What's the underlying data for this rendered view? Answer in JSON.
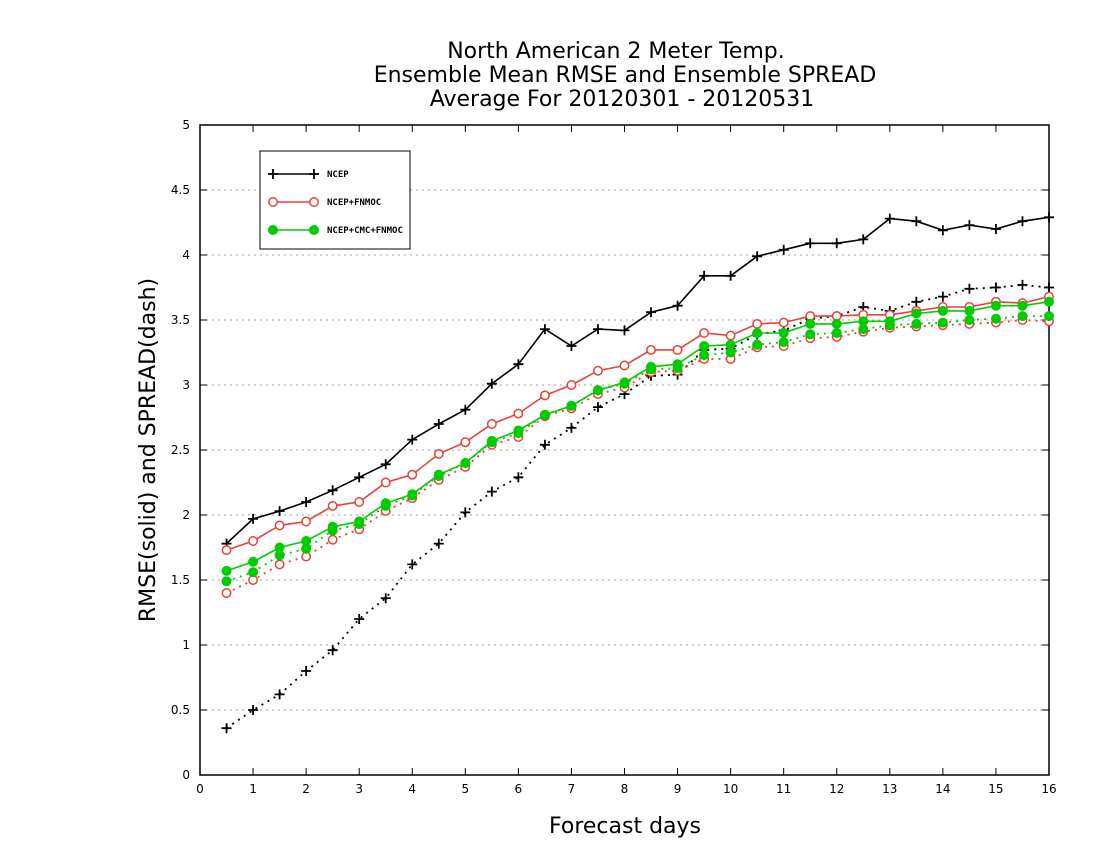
{
  "chart_data": {
    "type": "line",
    "title": [
      "North American 2 Meter Temp.",
      "Ensemble Mean RMSE and Ensemble SPREAD",
      "Average For 20120301 - 20120531"
    ],
    "xlabel": "Forecast days",
    "ylabel": "RMSE(solid) and SPREAD(dash)",
    "xlim": [
      0,
      16
    ],
    "ylim": [
      0,
      5
    ],
    "xticks": [
      "0",
      "1",
      "2",
      "3",
      "4",
      "5",
      "6",
      "7",
      "8",
      "9",
      "10",
      "11",
      "12",
      "13",
      "14",
      "15",
      "16"
    ],
    "yticks": [
      "0",
      "0.5",
      "1",
      "1.5",
      "2",
      "2.5",
      "3",
      "3.5",
      "4",
      "4.5",
      "5"
    ],
    "grid": true,
    "legend_position": "top-left",
    "x": [
      0.5,
      1,
      1.5,
      2,
      2.5,
      3,
      3.5,
      4,
      4.5,
      5,
      5.5,
      6,
      6.5,
      7,
      7.5,
      8,
      8.5,
      9,
      9.5,
      10,
      10.5,
      11,
      11.5,
      12,
      12.5,
      13,
      13.5,
      14,
      14.5,
      15,
      15.5,
      16
    ],
    "series": [
      {
        "name": "NCEP",
        "color": "#000000",
        "marker": "plus",
        "rmse": [
          1.78,
          1.97,
          2.03,
          2.1,
          2.19,
          2.29,
          2.39,
          2.58,
          2.7,
          2.81,
          3.01,
          3.16,
          3.43,
          3.3,
          3.43,
          3.42,
          3.56,
          3.61,
          3.84,
          3.84,
          3.99,
          4.04,
          4.09,
          4.09,
          4.12,
          4.28,
          4.26,
          4.19,
          4.23,
          4.2,
          4.26,
          4.29
        ],
        "spread": [
          0.36,
          0.5,
          0.62,
          0.8,
          0.96,
          1.2,
          1.36,
          1.62,
          1.78,
          2.02,
          2.18,
          2.29,
          2.54,
          2.67,
          2.83,
          2.93,
          3.07,
          3.08,
          3.27,
          3.28,
          3.39,
          3.42,
          3.51,
          3.53,
          3.6,
          3.57,
          3.64,
          3.68,
          3.74,
          3.75,
          3.77,
          3.75
        ]
      },
      {
        "name": "NCEP+FNMOC",
        "color": "#e8413b",
        "marker": "open-circle",
        "rmse": [
          1.73,
          1.8,
          1.92,
          1.95,
          2.07,
          2.1,
          2.25,
          2.31,
          2.47,
          2.56,
          2.7,
          2.78,
          2.92,
          3.0,
          3.11,
          3.15,
          3.27,
          3.27,
          3.4,
          3.38,
          3.47,
          3.48,
          3.53,
          3.53,
          3.54,
          3.54,
          3.57,
          3.6,
          3.6,
          3.64,
          3.63,
          3.68
        ],
        "spread": [
          1.4,
          1.5,
          1.62,
          1.68,
          1.81,
          1.89,
          2.03,
          2.13,
          2.27,
          2.37,
          2.54,
          2.6,
          2.76,
          2.82,
          2.93,
          2.98,
          3.1,
          3.11,
          3.2,
          3.2,
          3.29,
          3.3,
          3.36,
          3.37,
          3.41,
          3.44,
          3.45,
          3.46,
          3.47,
          3.48,
          3.5,
          3.49
        ]
      },
      {
        "name": "NCEP+CMC+FNMOC",
        "color": "#00cc00",
        "marker": "filled-circle",
        "rmse": [
          1.57,
          1.64,
          1.75,
          1.8,
          1.91,
          1.95,
          2.09,
          2.16,
          2.31,
          2.4,
          2.57,
          2.65,
          2.77,
          2.84,
          2.96,
          3.02,
          3.14,
          3.16,
          3.3,
          3.31,
          3.4,
          3.4,
          3.47,
          3.47,
          3.49,
          3.49,
          3.55,
          3.57,
          3.57,
          3.61,
          3.61,
          3.64
        ],
        "spread": [
          1.49,
          1.56,
          1.69,
          1.74,
          1.88,
          1.93,
          2.07,
          2.15,
          2.3,
          2.4,
          2.56,
          2.63,
          2.77,
          2.84,
          2.96,
          3.01,
          3.12,
          3.13,
          3.23,
          3.25,
          3.31,
          3.33,
          3.39,
          3.4,
          3.43,
          3.46,
          3.47,
          3.48,
          3.5,
          3.51,
          3.53,
          3.53
        ]
      }
    ]
  }
}
